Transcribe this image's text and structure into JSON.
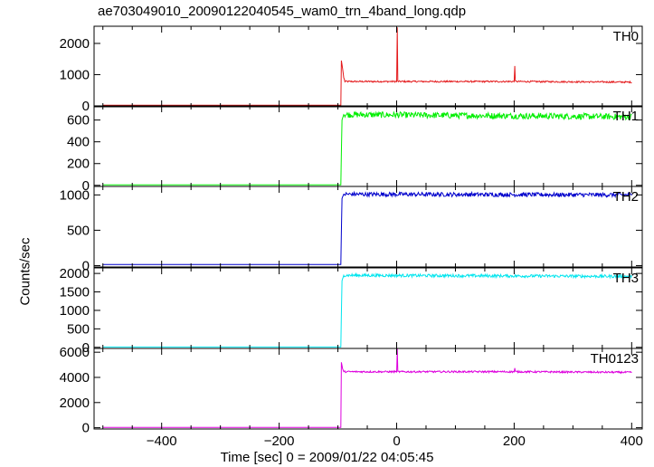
{
  "chart_data": {
    "type": "line",
    "title": "ae703049010_20090122040545_wam0_trn_4band_long.qdp",
    "xlabel": "Time [sec] 0 = 2009/01/22 04:05:45",
    "ylabel": "Counts/sec",
    "xlim": [
      -515,
      418
    ],
    "x_ticks": [
      -400,
      -200,
      0,
      200,
      400
    ],
    "grid": false,
    "panels": [
      {
        "name": "TH0",
        "color": "#e41a1c",
        "ylim": [
          -30,
          2550
        ],
        "y_ticks": [
          0,
          1000,
          2000
        ],
        "x": [
          -500,
          -95,
          -94,
          -92,
          -90,
          -88,
          -85,
          0,
          1,
          2,
          200,
          201,
          202,
          400
        ],
        "y": [
          20,
          20,
          1450,
          1200,
          900,
          780,
          780,
          780,
          2500,
          780,
          780,
          1300,
          780,
          760
        ],
        "noise": 25
      },
      {
        "name": "TH1",
        "color": "#00ee00",
        "ylim": [
          -10,
          730
        ],
        "y_ticks": [
          0,
          200,
          400,
          600
        ],
        "x": [
          -500,
          -95,
          -93,
          -90,
          400
        ],
        "y": [
          5,
          5,
          600,
          650,
          630
        ],
        "noise": 28
      },
      {
        "name": "TH2",
        "color": "#0000cc",
        "ylim": [
          -20,
          1120
        ],
        "y_ticks": [
          0,
          500,
          1000
        ],
        "x": [
          -500,
          -95,
          -93,
          -90,
          400
        ],
        "y": [
          15,
          15,
          950,
          1010,
          1000
        ],
        "noise": 30
      },
      {
        "name": "TH3",
        "color": "#00e5ee",
        "ylim": [
          -30,
          2150
        ],
        "y_ticks": [
          0,
          500,
          1000,
          1500,
          2000
        ],
        "x": [
          -500,
          -95,
          -93,
          -90,
          400
        ],
        "y": [
          10,
          10,
          1800,
          1950,
          1920
        ],
        "noise": 40
      },
      {
        "name": "TH0123",
        "color": "#dd00dd",
        "ylim": [
          -100,
          6300
        ],
        "y_ticks": [
          0,
          2000,
          4000,
          6000
        ],
        "x": [
          -500,
          -95,
          -94,
          -92,
          -90,
          0,
          1,
          2,
          200,
          201,
          202,
          400
        ],
        "y": [
          30,
          30,
          5200,
          4700,
          4450,
          4450,
          6200,
          4450,
          4450,
          4700,
          4450,
          4400
        ],
        "noise": 70
      }
    ]
  }
}
